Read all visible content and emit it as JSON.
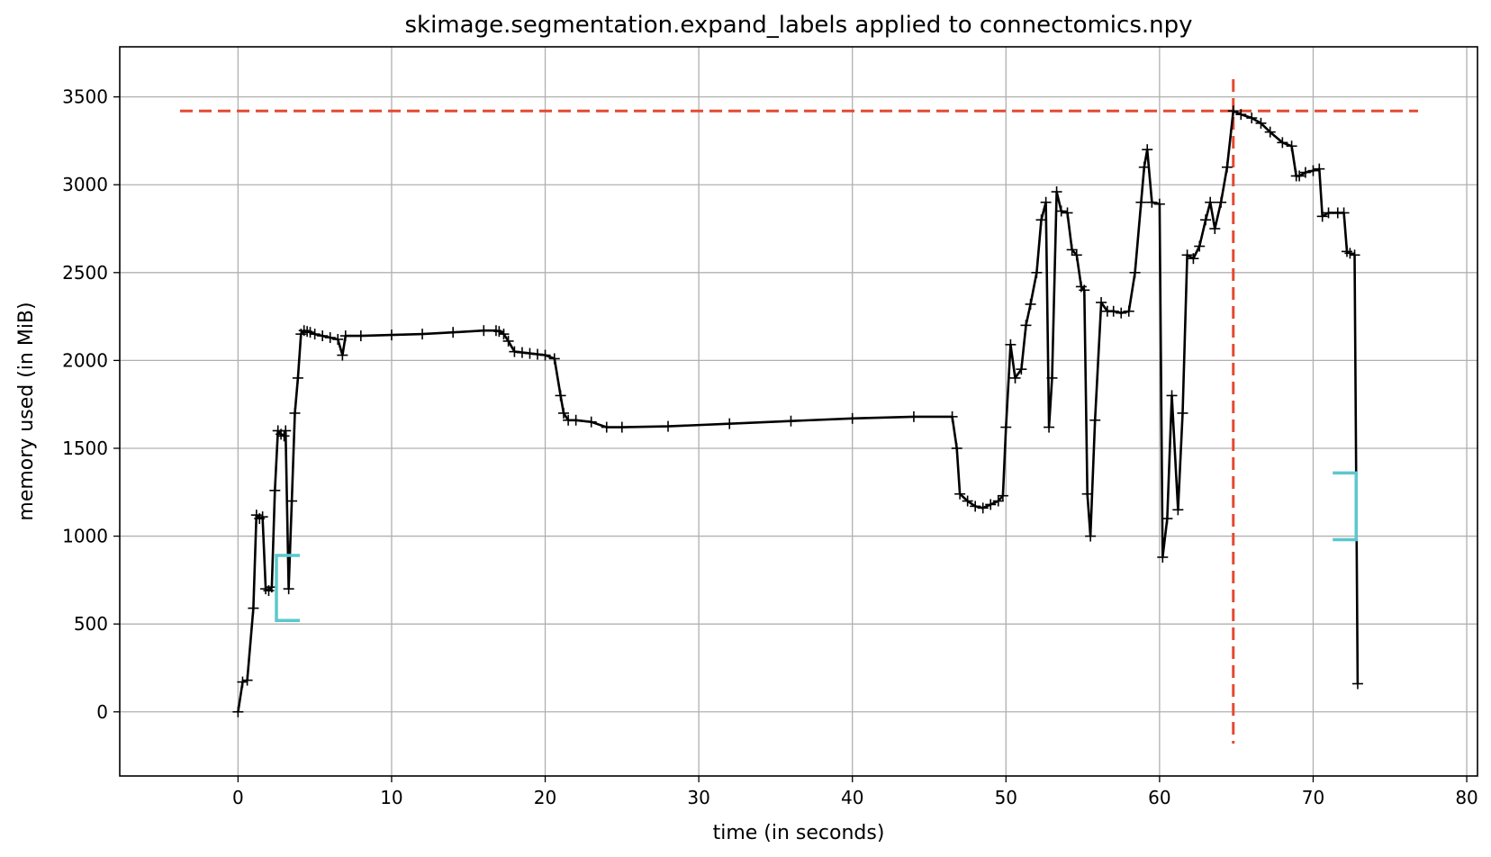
{
  "chart_data": {
    "type": "line",
    "title": "skimage.segmentation.expand_labels applied to connectomics.npy",
    "xlabel": "time (in seconds)",
    "ylabel": "memory used (in MiB)",
    "xlim": [
      -7.7,
      80.7
    ],
    "ylim": [
      -365,
      3785
    ],
    "x_ticks": [
      0,
      10,
      20,
      30,
      40,
      50,
      60,
      70,
      80
    ],
    "y_ticks": [
      0,
      500,
      1000,
      1500,
      2000,
      2500,
      3000,
      3500
    ],
    "grid": true,
    "colors": {
      "line": "#000000",
      "peak": "#e34a33",
      "bracket": "#5bc8cc"
    },
    "series": [
      {
        "marker": "+",
        "x": [
          0,
          0.3,
          0.6,
          1.0,
          1.2,
          1.4,
          1.6,
          1.8,
          2.0,
          2.2,
          2.4,
          2.6,
          2.8,
          3.0,
          3.1,
          3.3,
          3.5,
          3.7,
          3.9,
          4.1,
          4.3,
          4.5,
          4.7,
          5.0,
          5.5,
          6.0,
          6.5,
          6.8,
          7.0,
          8.0,
          10.0,
          12.0,
          14.0,
          16.0,
          16.8,
          17.0,
          17.3,
          17.6,
          18.0,
          18.5,
          19.0,
          19.5,
          20.0,
          20.6,
          21.0,
          21.2,
          21.5,
          22.0,
          23.0,
          24.0,
          25.0,
          28.0,
          32.0,
          36.0,
          40.0,
          44.0,
          46.5,
          46.8,
          47.0,
          47.5,
          48.0,
          48.5,
          49.0,
          49.5,
          49.8,
          50.0,
          50.3,
          50.6,
          51.0,
          51.3,
          51.6,
          52.0,
          52.3,
          52.6,
          52.8,
          53.0,
          53.3,
          53.6,
          54.0,
          54.3,
          54.6,
          54.9,
          55.1,
          55.3,
          55.5,
          55.8,
          56.2,
          56.6,
          57.0,
          57.5,
          58.0,
          58.4,
          58.8,
          59.0,
          59.2,
          59.5,
          60.0,
          60.2,
          60.5,
          60.8,
          61.2,
          61.5,
          61.8,
          62.2,
          62.6,
          63.0,
          63.3,
          63.6,
          64.0,
          64.4,
          64.8,
          65.3,
          66.0,
          66.6,
          67.2,
          68.0,
          68.6,
          68.9,
          69.1,
          69.5,
          70.0,
          70.4,
          70.6,
          71.0,
          71.6,
          72.0,
          72.2,
          72.4,
          72.7,
          72.9
        ],
        "y": [
          0,
          170,
          180,
          590,
          1120,
          1100,
          1110,
          700,
          690,
          710,
          1260,
          1600,
          1580,
          1570,
          1600,
          700,
          1200,
          1700,
          1900,
          2150,
          2170,
          2165,
          2160,
          2150,
          2140,
          2130,
          2120,
          2030,
          2140,
          2140,
          2145,
          2150,
          2160,
          2170,
          2170,
          2165,
          2150,
          2110,
          2050,
          2045,
          2040,
          2035,
          2030,
          2010,
          1800,
          1700,
          1660,
          1660,
          1650,
          1620,
          1620,
          1625,
          1640,
          1655,
          1670,
          1680,
          1680,
          1500,
          1240,
          1200,
          1170,
          1160,
          1180,
          1200,
          1230,
          1620,
          2090,
          1900,
          1950,
          2200,
          2320,
          2500,
          2800,
          2900,
          1620,
          1900,
          2960,
          2850,
          2840,
          2630,
          2600,
          2420,
          2400,
          1240,
          1000,
          1660,
          2330,
          2280,
          2280,
          2270,
          2280,
          2500,
          2900,
          3100,
          3200,
          2900,
          2890,
          880,
          1100,
          1800,
          1150,
          1700,
          2600,
          2580,
          2650,
          2800,
          2900,
          2750,
          2900,
          3100,
          3420,
          3400,
          3380,
          3350,
          3300,
          3240,
          3220,
          3050,
          3050,
          3070,
          3080,
          3090,
          2820,
          2840,
          2840,
          2840,
          2620,
          2610,
          2600,
          160
        ]
      }
    ],
    "peak": {
      "x": 64.8,
      "y": 3420
    },
    "brackets": [
      {
        "side": "start",
        "x": 2.5,
        "y": [
          520,
          890
        ]
      },
      {
        "side": "end",
        "x": 72.8,
        "y": [
          980,
          1360
        ]
      }
    ]
  }
}
